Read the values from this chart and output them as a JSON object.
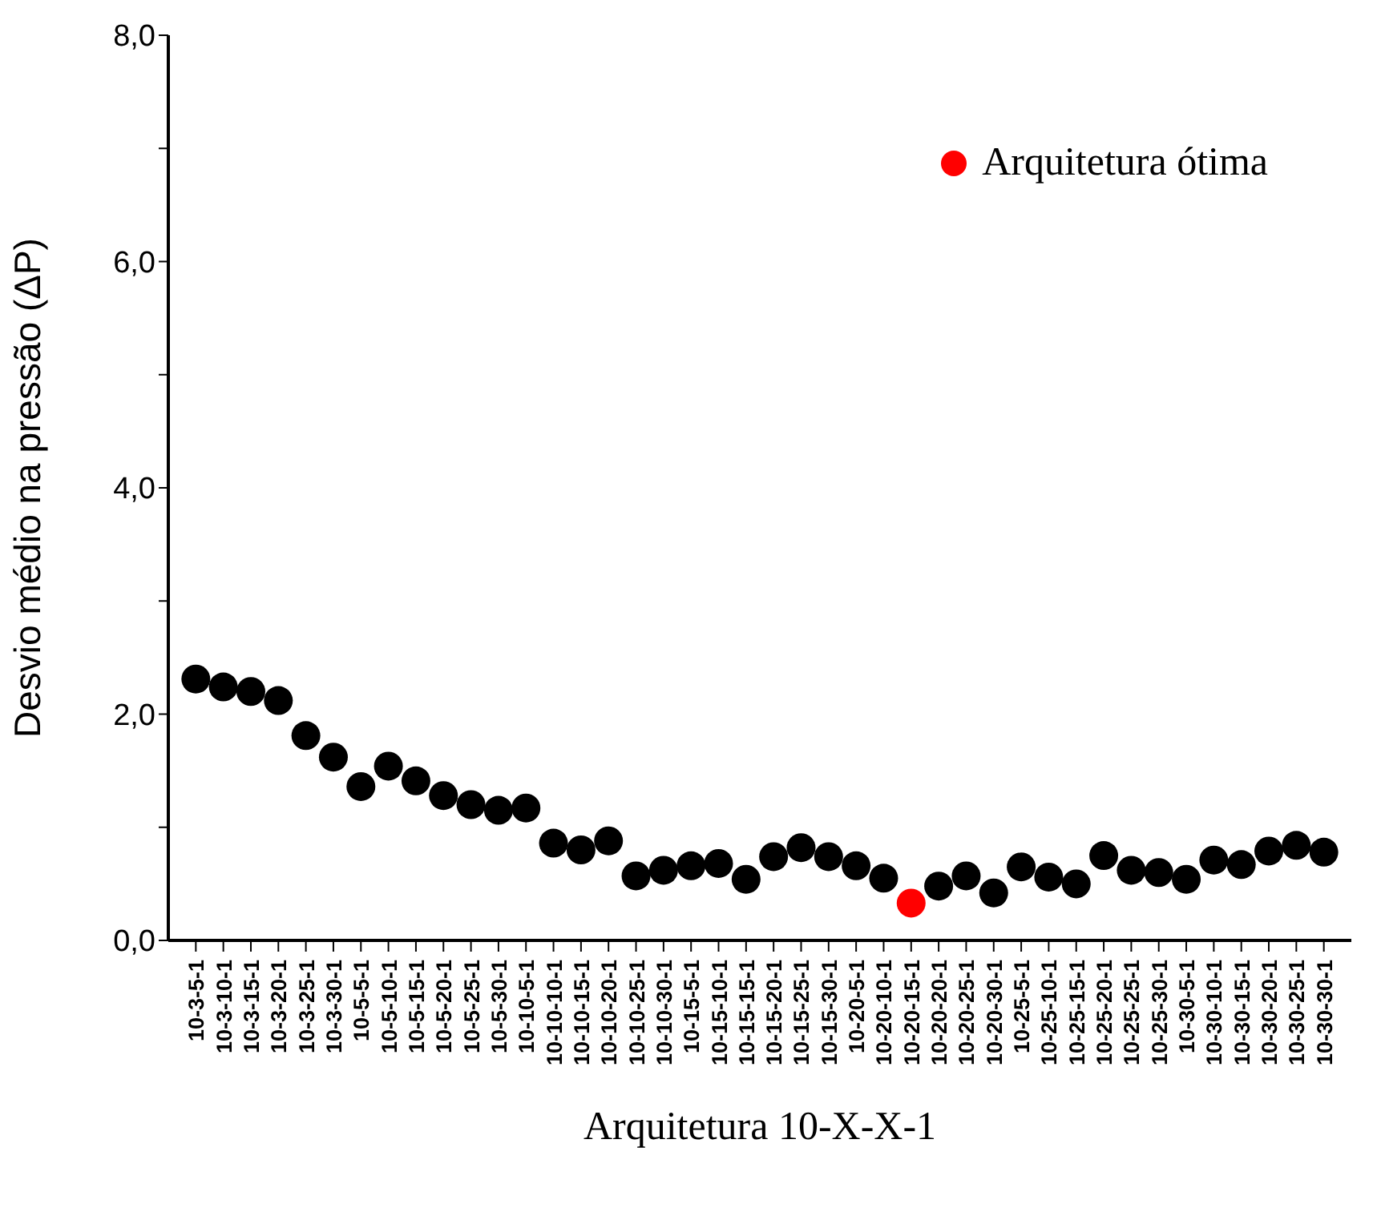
{
  "chart_data": {
    "type": "scatter",
    "xlabel": "Arquitetura 10-X-X-1",
    "ylabel": "Desvio médio na pressão (ΔP)",
    "categories": [
      "10-3-5-1",
      "10-3-10-1",
      "10-3-15-1",
      "10-3-20-1",
      "10-3-25-1",
      "10-3-30-1",
      "10-5-5-1",
      "10-5-10-1",
      "10-5-15-1",
      "10-5-20-1",
      "10-5-25-1",
      "10-5-30-1",
      "10-10-5-1",
      "10-10-10-1",
      "10-10-15-1",
      "10-10-20-1",
      "10-10-25-1",
      "10-10-30-1",
      "10-15-5-1",
      "10-15-10-1",
      "10-15-15-1",
      "10-15-20-1",
      "10-15-25-1",
      "10-15-30-1",
      "10-20-5-1",
      "10-20-10-1",
      "10-20-15-1",
      "10-20-20-1",
      "10-20-25-1",
      "10-20-30-1",
      "10-25-5-1",
      "10-25-10-1",
      "10-25-15-1",
      "10-25-20-1",
      "10-25-25-1",
      "10-25-30-1",
      "10-30-5-1",
      "10-30-10-1",
      "10-30-15-1",
      "10-30-20-1",
      "10-30-25-1",
      "10-30-30-1"
    ],
    "series": [
      {
        "color": "#000000",
        "values": [
          2.31,
          2.24,
          2.2,
          2.12,
          1.81,
          1.62,
          1.36,
          1.54,
          1.41,
          1.28,
          1.2,
          1.15,
          1.17,
          0.86,
          0.8,
          0.88,
          0.57,
          0.62,
          0.66,
          0.68,
          0.54,
          0.74,
          0.82,
          0.74,
          0.66,
          0.55,
          null,
          0.48,
          0.57,
          0.42,
          0.65,
          0.56,
          0.5,
          0.75,
          0.62,
          0.6,
          0.54,
          0.71,
          0.67,
          0.79,
          0.84,
          0.78
        ]
      },
      {
        "name": "Arquitetura ótima",
        "color": "#ff0000",
        "values": [
          null,
          null,
          null,
          null,
          null,
          null,
          null,
          null,
          null,
          null,
          null,
          null,
          null,
          null,
          null,
          null,
          null,
          null,
          null,
          null,
          null,
          null,
          null,
          null,
          null,
          null,
          0.33,
          null,
          null,
          null,
          null,
          null,
          null,
          null,
          null,
          null,
          null,
          null,
          null,
          null,
          null,
          null
        ]
      }
    ],
    "ylim": [
      0,
      8
    ],
    "yticks": [
      {
        "value": 0,
        "label": "0,0"
      },
      {
        "value": 1,
        "label": null
      },
      {
        "value": 2,
        "label": "2,0"
      },
      {
        "value": 3,
        "label": null
      },
      {
        "value": 4,
        "label": "4,0"
      },
      {
        "value": 5,
        "label": null
      },
      {
        "value": 6,
        "label": "6,0"
      },
      {
        "value": 7,
        "label": null
      },
      {
        "value": 8,
        "label": "8,0"
      }
    ],
    "grid": false,
    "legend": "top right",
    "marker": "circle"
  }
}
